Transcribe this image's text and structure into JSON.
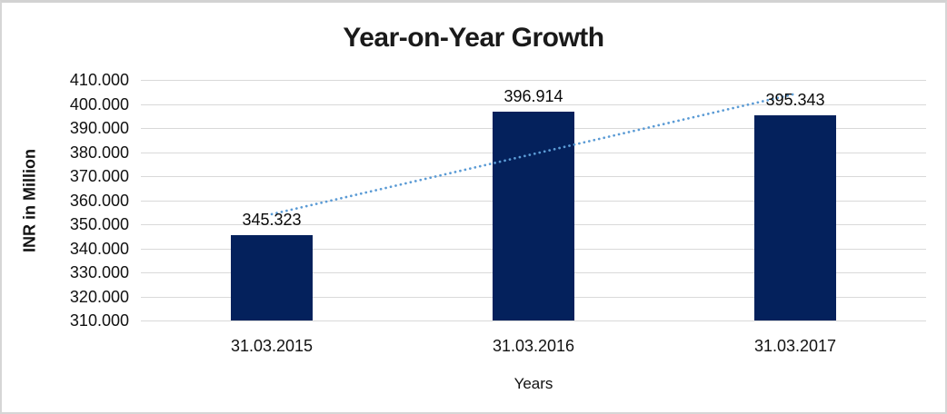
{
  "window": {
    "background": "#FFFFFF",
    "border_color": "#D6D6D6"
  },
  "chart_data": {
    "type": "bar",
    "title": "Year-on-Year Growth",
    "xlabel": "Years",
    "ylabel": "INR in Million",
    "categories": [
      "31.03.2015",
      "31.03.2016",
      "31.03.2017"
    ],
    "values": [
      345.323,
      396.914,
      395.343
    ],
    "data_labels": [
      "345.323",
      "396.914",
      "395.343"
    ],
    "ylim": [
      310,
      410
    ],
    "ytick_labels_top_to_bottom": [
      "410.000",
      "400.000",
      "390.000",
      "380.000",
      "370.000",
      "360.000",
      "350.000",
      "340.000",
      "330.000",
      "320.000",
      "310.000"
    ],
    "grid": true,
    "legend": "none",
    "bar_color": "#04215C",
    "gridline_color": "#D9D9D9",
    "label_color": "#111111",
    "trendline": {
      "type": "linear",
      "line_style": "dotted",
      "color": "#5B9BD5"
    }
  }
}
